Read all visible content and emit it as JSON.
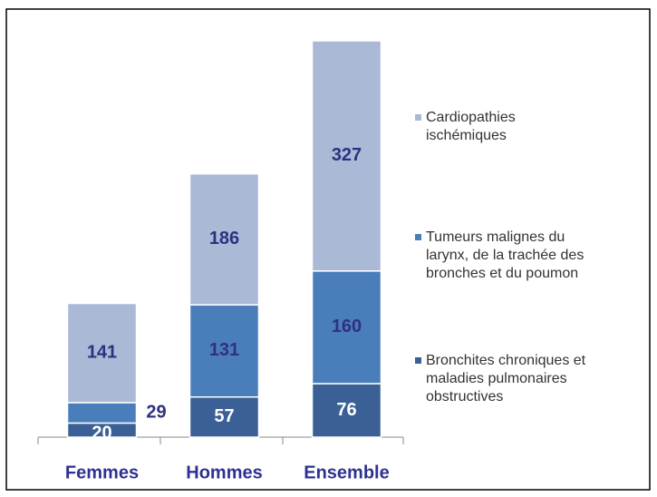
{
  "chart_data": {
    "type": "stacked_bar",
    "categories": [
      "Femmes",
      "Hommes",
      "Ensemble"
    ],
    "series": [
      {
        "name": "Bronchites chroniques et\nmaladies pulmonaires\nobstructives",
        "color": "#3a6096",
        "label_color": "#ffffff",
        "values": [
          20,
          57,
          76
        ]
      },
      {
        "name": "Tumeurs malignes du\nlarynx, de la trachée des\nbronches et du poumon",
        "color": "#4a7ebb",
        "label_color": "#2e3180",
        "values": [
          29,
          131,
          160
        ]
      },
      {
        "name": "Cardiopathies\nischémiques",
        "color": "#aab9d6",
        "label_color": "#2e3180",
        "values": [
          141,
          186,
          327
        ]
      }
    ]
  }
}
